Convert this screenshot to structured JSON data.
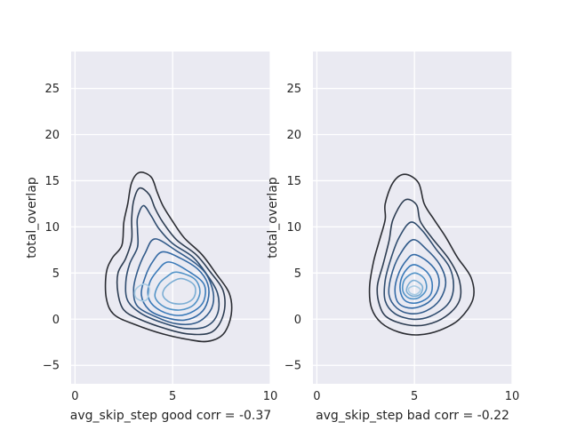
{
  "chart_data": [
    {
      "type": "kde_contour",
      "xlabel": "avg_skip_step good corr = -0.37",
      "ylabel": "total_overlap",
      "xlim": [
        -0.2,
        10
      ],
      "ylim": [
        -7,
        29
      ],
      "xticks": [
        0,
        5,
        10
      ],
      "yticks": [
        -5,
        0,
        5,
        10,
        15,
        20,
        25
      ],
      "grid": true,
      "background": "#eaeaf2",
      "colormap": "Blues_d",
      "contours": [
        {
          "level": 1,
          "color": "#2b2d33",
          "points": [
            [
              3.3,
              15.9
            ],
            [
              3.9,
              15.4
            ],
            [
              4.2,
              13.8
            ],
            [
              4.5,
              12.3
            ],
            [
              5.0,
              10.6
            ],
            [
              5.6,
              8.8
            ],
            [
              6.5,
              7.0
            ],
            [
              7.2,
              5.0
            ],
            [
              7.9,
              2.8
            ],
            [
              8.0,
              0.5
            ],
            [
              7.6,
              -1.6
            ],
            [
              6.8,
              -2.4
            ],
            [
              5.8,
              -2.2
            ],
            [
              4.5,
              -1.6
            ],
            [
              3.1,
              -0.6
            ],
            [
              2.0,
              0.5
            ],
            [
              1.6,
              2.3
            ],
            [
              1.6,
              5.0
            ],
            [
              1.9,
              6.6
            ],
            [
              2.4,
              8.0
            ],
            [
              2.5,
              10.5
            ],
            [
              2.7,
              12.5
            ],
            [
              2.9,
              14.8
            ]
          ]
        },
        {
          "level": 2,
          "color": "#2d3d52",
          "points": [
            [
              3.3,
              14.2
            ],
            [
              3.8,
              13.5
            ],
            [
              4.1,
              12.0
            ],
            [
              4.5,
              10.5
            ],
            [
              5.2,
              8.6
            ],
            [
              6.2,
              7.0
            ],
            [
              6.9,
              5.2
            ],
            [
              7.6,
              3.0
            ],
            [
              7.6,
              0.5
            ],
            [
              7.0,
              -1.4
            ],
            [
              5.8,
              -1.6
            ],
            [
              4.6,
              -1.0
            ],
            [
              3.3,
              0.0
            ],
            [
              2.5,
              1.0
            ],
            [
              2.2,
              2.8
            ],
            [
              2.2,
              5.0
            ],
            [
              2.6,
              6.6
            ],
            [
              2.9,
              8.6
            ],
            [
              2.9,
              10.8
            ],
            [
              3.0,
              12.8
            ]
          ]
        },
        {
          "level": 3,
          "color": "#2f4c6e",
          "points": [
            [
              3.5,
              12.3
            ],
            [
              3.9,
              11.2
            ],
            [
              4.3,
              9.8
            ],
            [
              5.0,
              8.2
            ],
            [
              6.0,
              6.8
            ],
            [
              6.7,
              5.0
            ],
            [
              7.3,
              2.8
            ],
            [
              7.3,
              0.6
            ],
            [
              6.7,
              -0.8
            ],
            [
              5.6,
              -1.0
            ],
            [
              4.5,
              -0.4
            ],
            [
              3.4,
              0.6
            ],
            [
              2.7,
              2.0
            ],
            [
              2.6,
              4.0
            ],
            [
              2.8,
              6.0
            ],
            [
              3.2,
              7.8
            ],
            [
              3.2,
              9.6
            ],
            [
              3.2,
              11.0
            ]
          ]
        },
        {
          "level": 4,
          "color": "#325b8a",
          "points": [
            [
              4.1,
              8.7
            ],
            [
              5.2,
              7.4
            ],
            [
              6.2,
              6.0
            ],
            [
              6.8,
              4.6
            ],
            [
              7.1,
              2.5
            ],
            [
              6.9,
              0.8
            ],
            [
              6.2,
              -0.4
            ],
            [
              5.2,
              -0.5
            ],
            [
              4.2,
              0.2
            ],
            [
              3.2,
              1.4
            ],
            [
              3.0,
              3.2
            ],
            [
              3.2,
              5.2
            ],
            [
              3.6,
              7.2
            ]
          ]
        },
        {
          "level": 5,
          "color": "#346aa5",
          "points": [
            [
              4.5,
              7.3
            ],
            [
              5.4,
              6.6
            ],
            [
              6.3,
              5.4
            ],
            [
              6.8,
              3.8
            ],
            [
              6.8,
              2.0
            ],
            [
              6.4,
              0.6
            ],
            [
              5.6,
              -0.1
            ],
            [
              4.6,
              0.2
            ],
            [
              3.8,
              1.0
            ],
            [
              3.4,
              2.6
            ],
            [
              3.6,
              4.6
            ],
            [
              4.0,
              6.3
            ]
          ]
        },
        {
          "level": 6,
          "color": "#3a7ab9",
          "points": [
            [
              4.8,
              6.2
            ],
            [
              5.8,
              5.2
            ],
            [
              6.6,
              3.8
            ],
            [
              6.6,
              2.0
            ],
            [
              6.1,
              0.9
            ],
            [
              5.3,
              0.4
            ],
            [
              4.4,
              0.9
            ],
            [
              3.8,
              2.1
            ],
            [
              3.8,
              3.8
            ],
            [
              4.2,
              5.2
            ]
          ]
        },
        {
          "level": 7,
          "color": "#5293c7",
          "points": [
            [
              5.2,
              5.1
            ],
            [
              6.1,
              4.4
            ],
            [
              6.4,
              3.0
            ],
            [
              6.1,
              1.6
            ],
            [
              5.4,
              1.0
            ],
            [
              4.6,
              1.3
            ],
            [
              4.1,
              2.4
            ],
            [
              4.3,
              3.8
            ],
            [
              4.7,
              4.6
            ]
          ]
        },
        {
          "level": 8,
          "color": "#7caed4",
          "points": [
            [
              5.4,
              4.4
            ],
            [
              6.1,
              3.7
            ],
            [
              6.1,
              2.4
            ],
            [
              5.6,
              1.7
            ],
            [
              4.9,
              1.8
            ],
            [
              4.5,
              2.6
            ],
            [
              4.7,
              3.6
            ]
          ]
        },
        {
          "level": 9,
          "color": "#a8cbe3",
          "points": [
            [
              3.5,
              3.8
            ],
            [
              3.8,
              3.4
            ],
            [
              3.7,
              2.2
            ],
            [
              3.4,
              2.0
            ],
            [
              3.1,
              2.4
            ],
            [
              3.1,
              3.2
            ]
          ]
        }
      ]
    },
    {
      "type": "kde_contour",
      "xlabel": "avg_skip_step bad corr = -0.22",
      "ylabel": "total_overlap",
      "xlim": [
        -0.2,
        10
      ],
      "ylim": [
        -7,
        29
      ],
      "xticks": [
        0,
        5,
        10
      ],
      "yticks": [
        -5,
        0,
        5,
        10,
        15,
        20,
        25
      ],
      "grid": true,
      "background": "#eaeaf2",
      "colormap": "Blues_d",
      "contours": [
        {
          "level": 1,
          "color": "#2b2d33",
          "points": [
            [
              4.5,
              15.7
            ],
            [
              5.2,
              14.8
            ],
            [
              5.5,
              12.5
            ],
            [
              6.0,
              10.8
            ],
            [
              6.6,
              8.9
            ],
            [
              7.2,
              6.7
            ],
            [
              7.9,
              4.5
            ],
            [
              8.0,
              2.2
            ],
            [
              7.3,
              0.0
            ],
            [
              6.3,
              -1.2
            ],
            [
              5.2,
              -1.7
            ],
            [
              4.2,
              -1.4
            ],
            [
              3.3,
              -0.4
            ],
            [
              2.8,
              1.2
            ],
            [
              2.7,
              3.5
            ],
            [
              2.9,
              6.2
            ],
            [
              3.2,
              8.5
            ],
            [
              3.5,
              10.8
            ],
            [
              3.5,
              12.5
            ],
            [
              3.9,
              14.8
            ]
          ]
        },
        {
          "level": 2,
          "color": "#2d3d52",
          "points": [
            [
              4.5,
              12.9
            ],
            [
              5.1,
              12.4
            ],
            [
              5.3,
              10.6
            ],
            [
              5.9,
              8.8
            ],
            [
              6.8,
              6.4
            ],
            [
              7.3,
              4.2
            ],
            [
              7.3,
              2.0
            ],
            [
              6.6,
              0.3
            ],
            [
              5.6,
              -0.6
            ],
            [
              4.6,
              -0.6
            ],
            [
              3.6,
              0.2
            ],
            [
              3.2,
              1.6
            ],
            [
              3.1,
              3.6
            ],
            [
              3.4,
              6.0
            ],
            [
              3.7,
              8.5
            ],
            [
              3.9,
              10.8
            ]
          ]
        },
        {
          "level": 3,
          "color": "#2f4c6e",
          "points": [
            [
              4.8,
              10.5
            ],
            [
              5.4,
              9.6
            ],
            [
              6.1,
              7.6
            ],
            [
              6.8,
              5.6
            ],
            [
              7.0,
              3.4
            ],
            [
              6.7,
              1.6
            ],
            [
              5.8,
              0.3
            ],
            [
              4.9,
              0.0
            ],
            [
              4.0,
              0.6
            ],
            [
              3.5,
              2.0
            ],
            [
              3.5,
              4.2
            ],
            [
              3.8,
              6.6
            ],
            [
              4.2,
              8.8
            ]
          ]
        },
        {
          "level": 4,
          "color": "#325b8a",
          "points": [
            [
              4.9,
              8.6
            ],
            [
              5.6,
              7.6
            ],
            [
              6.3,
              5.9
            ],
            [
              6.6,
              4.0
            ],
            [
              6.3,
              2.1
            ],
            [
              5.6,
              0.9
            ],
            [
              4.8,
              0.6
            ],
            [
              4.1,
              1.2
            ],
            [
              3.7,
              2.6
            ],
            [
              3.8,
              4.6
            ],
            [
              4.2,
              6.8
            ]
          ]
        },
        {
          "level": 5,
          "color": "#346aa5",
          "points": [
            [
              5.0,
              7.0
            ],
            [
              5.7,
              6.2
            ],
            [
              6.2,
              4.8
            ],
            [
              6.2,
              3.2
            ],
            [
              5.7,
              1.8
            ],
            [
              4.9,
              1.2
            ],
            [
              4.2,
              1.7
            ],
            [
              4.0,
              3.2
            ],
            [
              4.2,
              5.0
            ],
            [
              4.6,
              6.4
            ]
          ]
        },
        {
          "level": 6,
          "color": "#3a7ab9",
          "points": [
            [
              5.0,
              5.9
            ],
            [
              5.6,
              5.2
            ],
            [
              5.9,
              4.0
            ],
            [
              5.8,
              2.6
            ],
            [
              5.2,
              1.8
            ],
            [
              4.6,
              1.9
            ],
            [
              4.3,
              2.8
            ],
            [
              4.3,
              4.2
            ],
            [
              4.6,
              5.4
            ]
          ]
        },
        {
          "level": 7,
          "color": "#5293c7",
          "points": [
            [
              5.0,
              5.0
            ],
            [
              5.5,
              4.4
            ],
            [
              5.6,
              3.2
            ],
            [
              5.2,
              2.3
            ],
            [
              4.7,
              2.3
            ],
            [
              4.4,
              3.1
            ],
            [
              4.5,
              4.3
            ]
          ]
        },
        {
          "level": 8,
          "color": "#7caed4",
          "points": [
            [
              5.0,
              4.2
            ],
            [
              5.4,
              3.6
            ],
            [
              5.3,
              2.7
            ],
            [
              4.9,
              2.5
            ],
            [
              4.6,
              3.0
            ],
            [
              4.7,
              3.8
            ]
          ]
        },
        {
          "level": 9,
          "color": "#a8cbe3",
          "points": [
            [
              5.0,
              3.6
            ],
            [
              5.3,
              3.2
            ],
            [
              5.1,
              2.7
            ],
            [
              4.8,
              2.8
            ],
            [
              4.7,
              3.3
            ]
          ]
        }
      ]
    }
  ]
}
